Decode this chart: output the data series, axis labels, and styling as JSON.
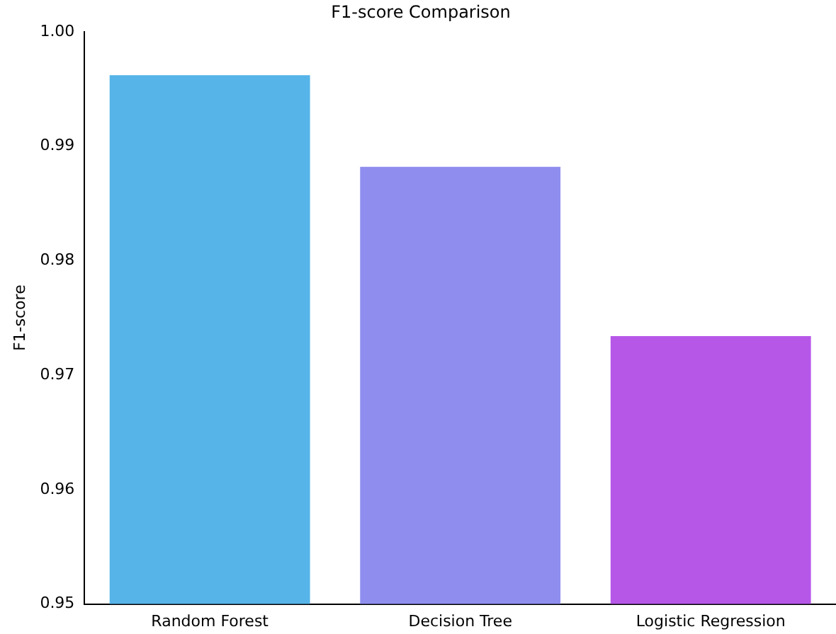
{
  "chart_data": {
    "type": "bar",
    "title": "F1-score Comparison",
    "ylabel": "F1-score",
    "categories": [
      "Random Forest",
      "Decision Tree",
      "Logistic Regression"
    ],
    "values": [
      0.9962,
      0.9882,
      0.9734
    ],
    "colors": [
      "#56b4e9",
      "#8f8eef",
      "#b657e8"
    ],
    "ylim": [
      0.95,
      1.0
    ],
    "yticks": [
      0.95,
      0.96,
      0.97,
      0.98,
      0.99,
      {
        "value": 1.0,
        "label": "1.00"
      }
    ],
    "grid": false,
    "legend": false
  }
}
